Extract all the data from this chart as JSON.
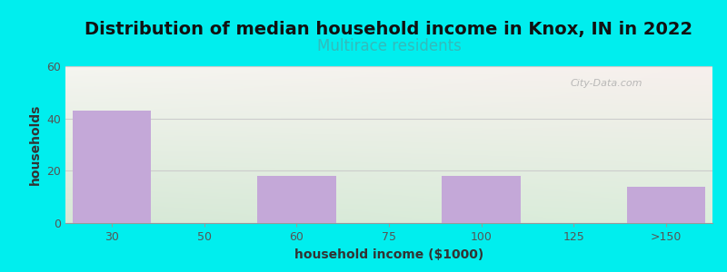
{
  "title": "Distribution of median household income in Knox, IN in 2022",
  "subtitle": "Multirace residents",
  "xlabel": "household income ($1000)",
  "ylabel": "households",
  "categories": [
    "30",
    "50",
    "60",
    "75",
    "100",
    "125",
    ">150"
  ],
  "values": [
    43,
    0,
    18,
    0,
    18,
    0,
    14
  ],
  "bar_color": "#c4a8d8",
  "bar_width": 0.85,
  "ylim": [
    0,
    60
  ],
  "yticks": [
    0,
    20,
    40,
    60
  ],
  "background_color": "#00eeee",
  "plot_bg_topleft": "#d8ead8",
  "plot_bg_topright": "#f0f0ee",
  "plot_bg_bottomleft": "#d8ead8",
  "plot_bg_bottomright": "#eef0f0",
  "title_fontsize": 14,
  "title_fontweight": "bold",
  "subtitle_fontsize": 12,
  "subtitle_color": "#33bbbb",
  "axis_label_fontsize": 10,
  "axis_label_fontweight": "bold",
  "tick_fontsize": 9,
  "tick_color": "#555555",
  "watermark_text": "City-Data.com",
  "watermark_color": "#aaaaaa",
  "grid_color": "#cccccc",
  "spine_color": "#999999"
}
